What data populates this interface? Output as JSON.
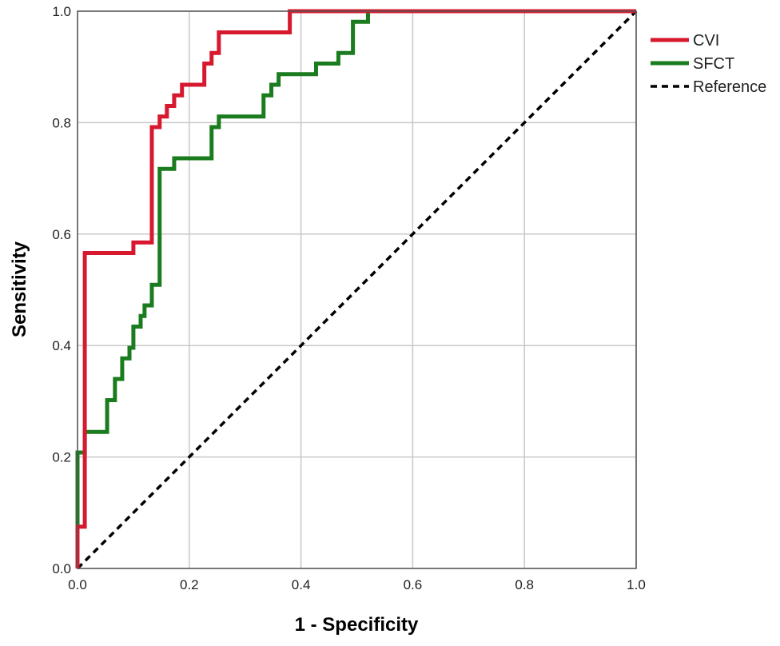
{
  "chart_data": {
    "type": "line",
    "xlabel": "1 - Specificity",
    "ylabel": "Sensitivity",
    "xlim": [
      0,
      1
    ],
    "ylim": [
      0,
      1
    ],
    "x_ticks": [
      "0.0",
      "0.2",
      "0.4",
      "0.6",
      "0.8",
      "1.0"
    ],
    "y_ticks": [
      "0.0",
      "0.2",
      "0.4",
      "0.6",
      "0.8",
      "1.0"
    ],
    "grid": true,
    "legend_position": "top-right",
    "series": [
      {
        "name": "CVI",
        "color": "#d7192f",
        "style": "solid",
        "points": [
          [
            0.0,
            0.0
          ],
          [
            0.0,
            0.075
          ],
          [
            0.013,
            0.075
          ],
          [
            0.013,
            0.566
          ],
          [
            0.1,
            0.566
          ],
          [
            0.1,
            0.585
          ],
          [
            0.133,
            0.585
          ],
          [
            0.133,
            0.792
          ],
          [
            0.147,
            0.792
          ],
          [
            0.147,
            0.811
          ],
          [
            0.16,
            0.811
          ],
          [
            0.16,
            0.83
          ],
          [
            0.173,
            0.83
          ],
          [
            0.173,
            0.849
          ],
          [
            0.187,
            0.849
          ],
          [
            0.187,
            0.868
          ],
          [
            0.227,
            0.868
          ],
          [
            0.227,
            0.906
          ],
          [
            0.24,
            0.906
          ],
          [
            0.24,
            0.925
          ],
          [
            0.253,
            0.925
          ],
          [
            0.253,
            0.962
          ],
          [
            0.267,
            0.962
          ],
          [
            0.38,
            0.962
          ],
          [
            0.38,
            1.0
          ],
          [
            1.0,
            1.0
          ]
        ]
      },
      {
        "name": "SFCT",
        "color": "#1a7c1e",
        "style": "solid",
        "points": [
          [
            0.0,
            0.0
          ],
          [
            0.0,
            0.208
          ],
          [
            0.013,
            0.208
          ],
          [
            0.013,
            0.245
          ],
          [
            0.053,
            0.245
          ],
          [
            0.053,
            0.302
          ],
          [
            0.067,
            0.302
          ],
          [
            0.067,
            0.34
          ],
          [
            0.08,
            0.34
          ],
          [
            0.08,
            0.377
          ],
          [
            0.093,
            0.377
          ],
          [
            0.093,
            0.396
          ],
          [
            0.1,
            0.396
          ],
          [
            0.1,
            0.434
          ],
          [
            0.113,
            0.434
          ],
          [
            0.113,
            0.453
          ],
          [
            0.12,
            0.453
          ],
          [
            0.12,
            0.472
          ],
          [
            0.133,
            0.472
          ],
          [
            0.133,
            0.509
          ],
          [
            0.147,
            0.509
          ],
          [
            0.147,
            0.717
          ],
          [
            0.173,
            0.717
          ],
          [
            0.173,
            0.736
          ],
          [
            0.24,
            0.736
          ],
          [
            0.24,
            0.792
          ],
          [
            0.253,
            0.792
          ],
          [
            0.253,
            0.811
          ],
          [
            0.333,
            0.811
          ],
          [
            0.333,
            0.849
          ],
          [
            0.347,
            0.849
          ],
          [
            0.347,
            0.868
          ],
          [
            0.36,
            0.868
          ],
          [
            0.36,
            0.887
          ],
          [
            0.427,
            0.887
          ],
          [
            0.427,
            0.906
          ],
          [
            0.467,
            0.906
          ],
          [
            0.467,
            0.925
          ],
          [
            0.493,
            0.925
          ],
          [
            0.493,
            0.981
          ],
          [
            0.52,
            0.981
          ],
          [
            0.52,
            1.0
          ],
          [
            1.0,
            1.0
          ]
        ]
      },
      {
        "name": "Reference",
        "color": "#000000",
        "style": "dashed",
        "points": [
          [
            0.0,
            0.0
          ],
          [
            1.0,
            1.0
          ]
        ]
      }
    ]
  }
}
